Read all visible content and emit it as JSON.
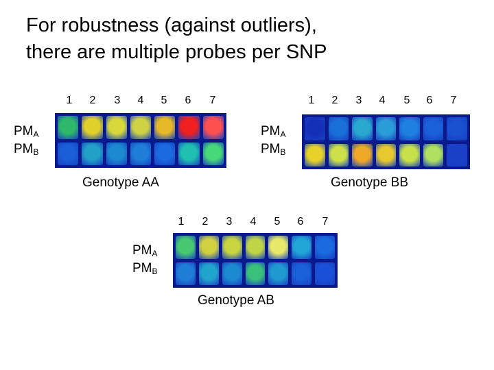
{
  "slide": {
    "title": "For robustness (against outliers),\nthere are multiple probes per SNP"
  },
  "panels": [
    {
      "id": "AA",
      "caption": "Genotype AA",
      "probe_numbers": [
        "1",
        "2",
        "3",
        "4",
        "5",
        "6",
        "7"
      ],
      "row_labels": {
        "a_main": "PM",
        "a_sub": "A",
        "b_main": "PM",
        "b_sub": "B"
      },
      "intensity_colors": {
        "row_A": [
          "#2fb86a",
          "#e0d02a",
          "#d8d83a",
          "#cfd244",
          "#e6b82a",
          "#f02020",
          "#ff5050"
        ],
        "row_B": [
          "#1a5ed8",
          "#22a0c8",
          "#1c8ad0",
          "#1e7ed8",
          "#1a6ae0",
          "#20c0b0",
          "#48d878"
        ]
      }
    },
    {
      "id": "BB",
      "caption": "Genotype BB",
      "probe_numbers": [
        "1",
        "2",
        "3",
        "4",
        "5",
        "6",
        "7"
      ],
      "row_labels": {
        "a_main": "PM",
        "a_sub": "A",
        "b_main": "PM",
        "b_sub": "B"
      },
      "intensity_colors": {
        "row_A": [
          "#1530b8",
          "#1a70d8",
          "#2aa8d0",
          "#2a9cd8",
          "#1f80e0",
          "#1a60d8",
          "#1850d0"
        ],
        "row_B": [
          "#e8d22a",
          "#cde04a",
          "#f0a828",
          "#e8c830",
          "#c8e04a",
          "#b0e060",
          "#1a40c8"
        ]
      }
    },
    {
      "id": "AB",
      "caption": "Genotype AB",
      "probe_numbers": [
        "1",
        "2",
        "3",
        "4",
        "5",
        "6",
        "7"
      ],
      "row_labels": {
        "a_main": "PM",
        "a_sub": "A",
        "b_main": "PM",
        "b_sub": "B"
      },
      "intensity_colors": {
        "row_A": [
          "#48c870",
          "#d0d040",
          "#c8d440",
          "#c0d448",
          "#e8e86a",
          "#22a6d8",
          "#1a6ae0"
        ],
        "row_B": [
          "#1e7ed8",
          "#20a6cc",
          "#1c8ad0",
          "#3ac07a",
          "#2098d0",
          "#1a60d8",
          "#1a50d8"
        ]
      }
    }
  ]
}
